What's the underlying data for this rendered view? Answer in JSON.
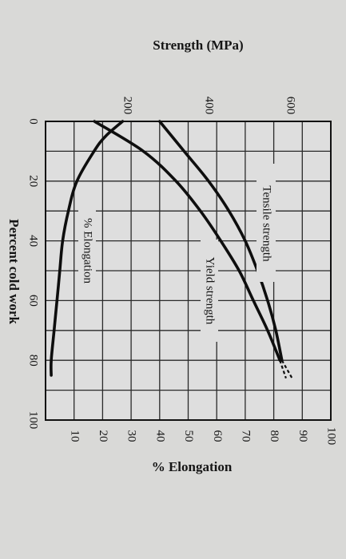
{
  "chart_data": {
    "type": "line",
    "orientation": "rotated-90-clockwise",
    "title": "",
    "xlabel": "Percent cold work",
    "ylabel_left": "Strength (MPa)",
    "ylabel_right": "% Elongation",
    "xlim": [
      0,
      100
    ],
    "ylim_left": [
      0,
      700
    ],
    "ylim_right": [
      0,
      100
    ],
    "x_ticks": [
      "0",
      "20",
      "40",
      "60",
      "80",
      "100"
    ],
    "y_left_ticks": [
      "200",
      "400",
      "600"
    ],
    "y_right_ticks": [
      "10",
      "20",
      "30",
      "40",
      "50",
      "60",
      "70",
      "80",
      "90",
      "100"
    ],
    "grid": true,
    "series": [
      {
        "name": "Tensile strength",
        "axis": "left",
        "x": [
          0,
          10,
          20,
          30,
          40,
          50,
          60,
          70,
          80
        ],
        "y": [
          280,
          340,
          400,
          450,
          490,
          520,
          545,
          565,
          580
        ]
      },
      {
        "name": "Yield strength",
        "axis": "left",
        "x": [
          0,
          10,
          20,
          30,
          40,
          50,
          60,
          70,
          80
        ],
        "y": [
          120,
          240,
          320,
          380,
          430,
          475,
          510,
          545,
          575
        ]
      },
      {
        "name": "% Elongation",
        "axis": "right",
        "x": [
          0,
          5,
          10,
          20,
          30,
          40,
          50,
          60,
          70,
          80,
          85
        ],
        "y": [
          27,
          21,
          17,
          11,
          8,
          6,
          5,
          4,
          3,
          2,
          2
        ]
      }
    ]
  }
}
